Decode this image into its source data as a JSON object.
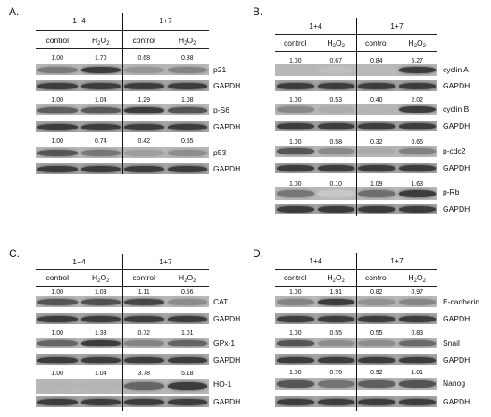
{
  "panels": [
    {
      "letter": "A.",
      "groups": [
        "1+4",
        "1+7"
      ],
      "conditions": [
        "control",
        "H2O2",
        "control",
        "H2O2"
      ],
      "blots": [
        {
          "protein": "p21",
          "values": [
            "1.00",
            "1.70",
            "0.68",
            "0.88"
          ],
          "loading": "GAPDH"
        },
        {
          "protein": "p-S6",
          "values": [
            "1.00",
            "1.04",
            "1.29",
            "1.08"
          ],
          "loading": "GAPDH"
        },
        {
          "protein": "p53",
          "values": [
            "1.00",
            "0.74",
            "0.42",
            "0.55"
          ],
          "loading": "GAPDH"
        }
      ]
    },
    {
      "letter": "B.",
      "groups": [
        "1+4",
        "1+7"
      ],
      "conditions": [
        "control",
        "H2O2",
        "control",
        "H2O2"
      ],
      "blots": [
        {
          "protein": "cyclin A",
          "values": [
            "1.00",
            "0.67",
            "0.84",
            "5.27"
          ],
          "loading": "GAPDH"
        },
        {
          "protein": "cyclin B",
          "values": [
            "1.00",
            "0.53",
            "0.40",
            "2.02"
          ],
          "loading": "GAPDH"
        },
        {
          "protein": "p-cdc2",
          "values": [
            "1.00",
            "0.58",
            "0.32",
            "0.65"
          ],
          "loading": "GAPDH"
        },
        {
          "protein": "p-Rb",
          "values": [
            "1.00",
            "0.10",
            "1.09",
            "1.63"
          ],
          "loading": "GAPDH"
        }
      ]
    },
    {
      "letter": "C.",
      "groups": [
        "1+4",
        "1+7"
      ],
      "conditions": [
        "control",
        "H2O2",
        "control",
        "H2O2"
      ],
      "blots": [
        {
          "protein": "CAT",
          "values": [
            "1.00",
            "1.03",
            "1.11",
            "0.56"
          ],
          "loading": "GAPDH"
        },
        {
          "protein": "GPx-1",
          "values": [
            "1.00",
            "1.38",
            "0.72",
            "1.01"
          ],
          "loading": "GAPDH"
        },
        {
          "protein": "HO-1",
          "values": [
            "1.00",
            "1.04",
            "3.78",
            "5.18"
          ],
          "loading": "GAPDH"
        }
      ]
    },
    {
      "letter": "D.",
      "groups": [
        "1+4",
        "1+7"
      ],
      "conditions": [
        "control",
        "H2O2",
        "control",
        "H2O2"
      ],
      "blots": [
        {
          "protein": "E-cadherin",
          "values": [
            "1.00",
            "1.91",
            "0.82",
            "0.97"
          ],
          "loading": "GAPDH"
        },
        {
          "protein": "Snail",
          "values": [
            "1.00",
            "0.55",
            "0.55",
            "0.83"
          ],
          "loading": "GAPDH"
        },
        {
          "protein": "Nanog",
          "values": [
            "1.00",
            "0.76",
            "0.92",
            "1.01"
          ],
          "loading": "GAPDH"
        }
      ]
    }
  ]
}
